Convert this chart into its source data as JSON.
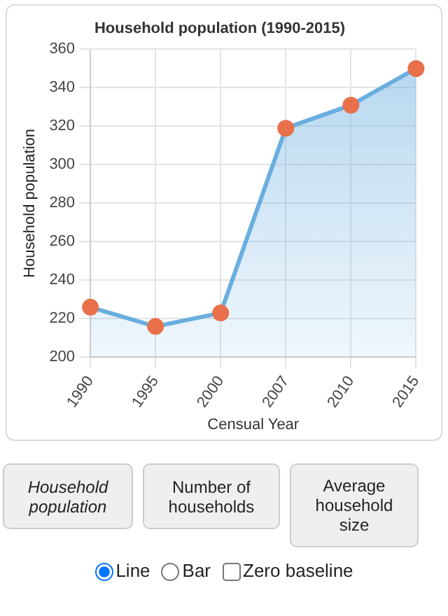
{
  "chart_data": {
    "type": "area",
    "title": "Household population (1990-2015)",
    "xlabel": "Censual Year",
    "ylabel": "Household population",
    "categories": [
      "1990",
      "1995",
      "2000",
      "2007",
      "2010",
      "2015"
    ],
    "series": [
      {
        "color": "#6aaee0",
        "colors": [
          "#e8704a",
          "#e8704a",
          "#e8704a",
          "#e8704a",
          "#e8704a",
          "#e8704a"
        ],
        "values": [
          226,
          216,
          223,
          319,
          331,
          350
        ]
      }
    ],
    "marker": "circle",
    "ylim": [
      200,
      360
    ],
    "yticks": [
      200,
      220,
      240,
      260,
      280,
      300,
      320,
      340,
      360
    ],
    "grid": true,
    "legend": false,
    "annotations": [
      "Household population",
      "Number of households",
      "Average household size",
      "Line",
      "Bar",
      "Zero baseline"
    ]
  }
}
